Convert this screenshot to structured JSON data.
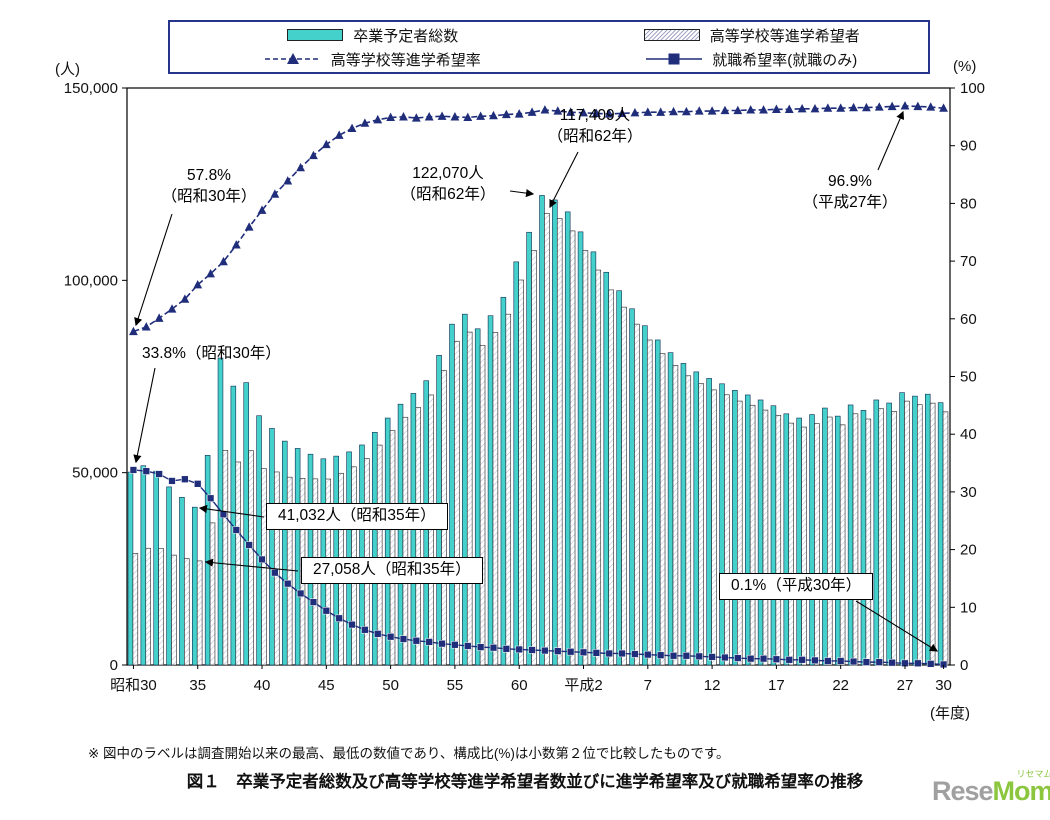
{
  "legend": {
    "items": [
      {
        "label": "卒業予定者総数",
        "marker": "cyan-bar"
      },
      {
        "label": "高等学校等進学希望者",
        "marker": "white-hatched-bar"
      },
      {
        "label": "高等学校等進学希望率",
        "marker": "dashed-line-triangle"
      },
      {
        "label": "就職希望率(就職のみ)",
        "marker": "solid-line-square"
      }
    ]
  },
  "axes": {
    "left_unit": "(人)",
    "right_unit": "(%)",
    "x_unit": "(年度)",
    "left_ticks": [
      "0",
      "50,000",
      "100,000",
      "150,000"
    ],
    "left_tick_values": [
      0,
      50000,
      100000,
      150000
    ],
    "right_ticks": [
      "0",
      "10",
      "20",
      "30",
      "40",
      "50",
      "60",
      "70",
      "80",
      "90",
      "100"
    ],
    "right_tick_values": [
      0,
      10,
      20,
      30,
      40,
      50,
      60,
      70,
      80,
      90,
      100
    ],
    "x_ticks": [
      {
        "index": 0,
        "label": "昭和30"
      },
      {
        "index": 5,
        "label": "35"
      },
      {
        "index": 10,
        "label": "40"
      },
      {
        "index": 15,
        "label": "45"
      },
      {
        "index": 20,
        "label": "50"
      },
      {
        "index": 25,
        "label": "55"
      },
      {
        "index": 30,
        "label": "60"
      },
      {
        "index": 35,
        "label": "平成2"
      },
      {
        "index": 40,
        "label": "7"
      },
      {
        "index": 45,
        "label": "12"
      },
      {
        "index": 50,
        "label": "17"
      },
      {
        "index": 55,
        "label": "22"
      },
      {
        "index": 60,
        "label": "27"
      },
      {
        "index": 63,
        "label": "30"
      }
    ]
  },
  "chart_data": {
    "type": "combo-bar-line",
    "title": "卒業予定者総数及び高等学校等進学希望者数並びに進学希望率及び就職希望率の推移",
    "x_axis_unit": "(年度)",
    "left_axis_unit": "(人)",
    "right_axis_unit": "(%)",
    "left_ylim": [
      0,
      150000
    ],
    "right_ylim": [
      0,
      100
    ],
    "grid": false,
    "legend_position": "top",
    "categories": [
      "昭和30",
      "昭和31",
      "昭和32",
      "昭和33",
      "昭和34",
      "昭和35",
      "昭和36",
      "昭和37",
      "昭和38",
      "昭和39",
      "昭和40",
      "昭和41",
      "昭和42",
      "昭和43",
      "昭和44",
      "昭和45",
      "昭和46",
      "昭和47",
      "昭和48",
      "昭和49",
      "昭和50",
      "昭和51",
      "昭和52",
      "昭和53",
      "昭和54",
      "昭和55",
      "昭和56",
      "昭和57",
      "昭和58",
      "昭和59",
      "昭和60",
      "昭和61",
      "昭和62",
      "昭和63",
      "平成元",
      "平成2",
      "平成3",
      "平成4",
      "平成5",
      "平成6",
      "平成7",
      "平成8",
      "平成9",
      "平成10",
      "平成11",
      "平成12",
      "平成13",
      "平成14",
      "平成15",
      "平成16",
      "平成17",
      "平成18",
      "平成19",
      "平成20",
      "平成21",
      "平成22",
      "平成23",
      "平成24",
      "平成25",
      "平成26",
      "平成27",
      "平成28",
      "平成29",
      "平成30"
    ],
    "series": [
      {
        "name": "卒業予定者総数",
        "type": "bar",
        "axis": "left",
        "color": "#45d1cb",
        "values": [
          50159,
          51800,
          50400,
          46300,
          43600,
          41032,
          54500,
          79800,
          72500,
          73400,
          64800,
          61500,
          58200,
          56300,
          54800,
          53600,
          54300,
          55400,
          57200,
          60500,
          64200,
          67800,
          70600,
          73900,
          80500,
          88600,
          91200,
          87400,
          90800,
          95600,
          104800,
          112500,
          122070,
          120900,
          117800,
          112600,
          107400,
          102100,
          97300,
          92600,
          88200,
          84500,
          81200,
          78400,
          76200,
          74500,
          73100,
          71400,
          70200,
          68900,
          67400,
          65300,
          64200,
          65100,
          66800,
          64700,
          67600,
          66200,
          68900,
          68100,
          70800,
          69900,
          70400,
          68200
        ]
      },
      {
        "name": "高等学校等進学希望者",
        "type": "bar",
        "axis": "left",
        "color": "#ffffff",
        "values": [
          28992,
          30355,
          30290,
          28567,
          27642,
          27058,
          36951,
          55780,
          52780,
          55711,
          51062,
          50184,
          48830,
          48531,
          48388,
          48347,
          49847,
          51522,
          53711,
          57173,
          60926,
          64410,
          66929,
          70205,
          76556,
          84170,
          86549,
          83117,
          86442,
          91202,
          100084,
          107775,
          117409,
          116064,
          112852,
          107758,
          102674,
          97506,
          93039,
          88618,
          84496,
          80951,
          77871,
          75186,
          73152,
          71520,
          70249,
          68615,
          67532,
          66278,
          64916,
          62884,
          61857,
          62756,
          64462,
          62436,
          65302,
          63949,
          66626,
          65921,
          68605,
          67663,
          68077,
          65813
        ]
      },
      {
        "name": "高等学校等進学希望率",
        "type": "line",
        "style": "dashed",
        "marker": "triangle",
        "axis": "right",
        "color": "#1f2d7b",
        "values": [
          57.8,
          58.6,
          60.1,
          61.7,
          63.4,
          65.9,
          67.8,
          69.9,
          72.8,
          75.9,
          78.8,
          81.6,
          83.9,
          86.2,
          88.3,
          90.2,
          91.8,
          93.0,
          93.9,
          94.5,
          94.9,
          95.0,
          94.8,
          95.0,
          95.1,
          95.0,
          94.9,
          95.1,
          95.2,
          95.4,
          95.5,
          95.8,
          96.2,
          96.0,
          95.8,
          95.7,
          95.6,
          95.5,
          95.6,
          95.7,
          95.8,
          95.8,
          95.9,
          95.9,
          96.0,
          96.0,
          96.1,
          96.1,
          96.2,
          96.2,
          96.3,
          96.3,
          96.4,
          96.4,
          96.5,
          96.5,
          96.6,
          96.6,
          96.7,
          96.8,
          96.9,
          96.8,
          96.7,
          96.5
        ]
      },
      {
        "name": "就職希望率(就職のみ)",
        "type": "line",
        "style": "solid",
        "marker": "square",
        "axis": "right",
        "color": "#1f2d7b",
        "values": [
          33.8,
          33.6,
          33.1,
          31.9,
          32.2,
          31.4,
          28.9,
          26.1,
          23.4,
          20.8,
          18.3,
          16.0,
          14.1,
          12.4,
          10.9,
          9.4,
          8.1,
          7.0,
          6.1,
          5.4,
          4.9,
          4.5,
          4.2,
          4.0,
          3.7,
          3.5,
          3.3,
          3.1,
          3.0,
          2.8,
          2.7,
          2.6,
          2.5,
          2.4,
          2.3,
          2.2,
          2.1,
          2.0,
          2.0,
          1.9,
          1.8,
          1.7,
          1.6,
          1.6,
          1.5,
          1.4,
          1.3,
          1.2,
          1.1,
          1.1,
          1.0,
          0.9,
          0.9,
          0.8,
          0.7,
          0.7,
          0.6,
          0.5,
          0.5,
          0.4,
          0.3,
          0.3,
          0.2,
          0.1
        ]
      }
    ],
    "notable_values": {
      "rate_start": {
        "value": 57.8,
        "year": "昭和30"
      },
      "employment_start": {
        "value": 33.8,
        "year": "昭和30"
      },
      "total_max": {
        "value": 122070,
        "year": "昭和62"
      },
      "advance_max": {
        "value": 117409,
        "year": "昭和62"
      },
      "rate_max": {
        "value": 96.9,
        "year": "平成27"
      },
      "total_min": {
        "value": 41032,
        "year": "昭和35"
      },
      "advance_min": {
        "value": 27058,
        "year": "昭和35"
      },
      "employment_end": {
        "value": 0.1,
        "year": "平成30"
      }
    }
  },
  "annotations": [
    {
      "id": "rate-start",
      "line1": "57.8%",
      "line2": "（昭和30年）",
      "boxed": false
    },
    {
      "id": "emp-start",
      "line1": "33.8%（昭和30年）",
      "line2": "",
      "boxed": false
    },
    {
      "id": "total-peak",
      "line1": "122,070人",
      "line2": "（昭和62年）",
      "boxed": false
    },
    {
      "id": "adv-peak",
      "line1": "117,409人",
      "line2": "（昭和62年）",
      "boxed": false
    },
    {
      "id": "rate-max",
      "line1": "96.9%",
      "line2": "（平成27年）",
      "boxed": false
    },
    {
      "id": "total-min",
      "line1": "41,032人（昭和35年）",
      "line2": "",
      "boxed": true
    },
    {
      "id": "adv-min",
      "line1": "27,058人（昭和35年）",
      "line2": "",
      "boxed": true
    },
    {
      "id": "emp-end",
      "line1": "0.1%（平成30年）",
      "line2": "",
      "boxed": true
    }
  ],
  "footnote": "※ 図中のラベルは調査開始以来の最高、最低の数値であり、構成比(%)は小数第２位で比較したものです。",
  "caption": "図１　卒業予定者総数及び高等学校等進学希望者数並びに進学希望率及び就職希望率の推移",
  "watermark": {
    "text_gray": "Rese",
    "text_green": "Mom",
    "ruby": "リセマム"
  },
  "colors": {
    "accent_navy": "#1f2d7b",
    "bar_cyan": "#45d1cb",
    "legend_border": "#26348b",
    "watermark_gray": "#a0a0a0",
    "watermark_green": "#8cc63f"
  }
}
